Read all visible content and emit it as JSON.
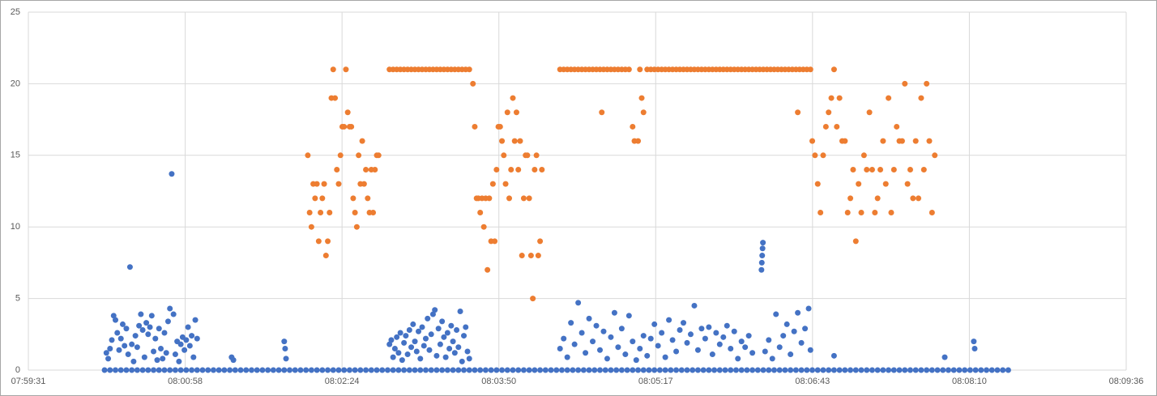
{
  "chart_data": {
    "type": "scatter",
    "xlim": [
      28771,
      29376
    ],
    "xticks": [
      {
        "value": 28771,
        "label": "07:59:31"
      },
      {
        "value": 28857.43,
        "label": "08:00:58"
      },
      {
        "value": 28943.86,
        "label": "08:02:24"
      },
      {
        "value": 29030.29,
        "label": "08:03:50"
      },
      {
        "value": 29116.71,
        "label": "08:05:17"
      },
      {
        "value": 29203.14,
        "label": "08:06:43"
      },
      {
        "value": 29289.57,
        "label": "08:08:10"
      },
      {
        "value": 29376,
        "label": "08:09:36"
      }
    ],
    "ylim": [
      0,
      25
    ],
    "yticks": [
      0,
      5,
      10,
      15,
      20,
      25
    ],
    "grid": true,
    "series": [
      {
        "color": "#4472c4",
        "x": [
          28813,
          28816,
          28819,
          28822,
          28825,
          28828,
          28831,
          28834,
          28837,
          28840,
          28843,
          28846,
          28849,
          28852,
          28855,
          28858,
          28861,
          28864,
          28867,
          28870,
          28873,
          28876,
          28879,
          28882,
          28885,
          28888,
          28891,
          28894,
          28897,
          28900,
          28903,
          28906,
          28909,
          28912,
          28915,
          28918,
          28921,
          28924,
          28927,
          28930,
          28933,
          28936,
          28939,
          28942,
          28945,
          28948,
          28951,
          28954,
          28957,
          28960,
          28963,
          28966,
          28969,
          28972,
          28975,
          28978,
          28981,
          28984,
          28987,
          28990,
          28993,
          28996,
          28999,
          29002,
          29005,
          29008,
          29011,
          29014,
          29017,
          29020,
          29023,
          29026,
          29029,
          29032,
          29035,
          29038,
          29041,
          29044,
          29047,
          29050,
          29053,
          29056,
          29059,
          29062,
          29065,
          29068,
          29071,
          29074,
          29077,
          29080,
          29083,
          29086,
          29089,
          29092,
          29095,
          29098,
          29101,
          29104,
          29107,
          29110,
          29113,
          29116,
          29119,
          29122,
          29125,
          29128,
          29131,
          29134,
          29137,
          29140,
          29143,
          29146,
          29149,
          29152,
          29155,
          29158,
          29161,
          29164,
          29167,
          29170,
          29173,
          29176,
          29179,
          29182,
          29185,
          29188,
          29191,
          29194,
          29197,
          29200,
          29203,
          29206,
          29209,
          29212,
          29215,
          29218,
          29221,
          29224,
          29227,
          29230,
          29233,
          29236,
          29239,
          29242,
          29245,
          29248,
          29251,
          29254,
          29257,
          29260,
          29263,
          29266,
          29269,
          29272,
          29275,
          29278,
          29281,
          29284,
          29287,
          29290,
          29293,
          29296,
          29299,
          29302,
          29305,
          29308,
          29311,
          28814,
          28815,
          28816,
          28817,
          28818,
          28819,
          28820,
          28821,
          28822,
          28823,
          28824,
          28825,
          28826,
          28827,
          28828,
          28829,
          28830,
          28831,
          28832,
          28833,
          28834,
          28835,
          28836,
          28837,
          28838,
          28839,
          28840,
          28841,
          28842,
          28843,
          28844,
          28845,
          28846,
          28847,
          28848,
          28849,
          28850,
          28851,
          28852,
          28853,
          28854,
          28855,
          28856,
          28857,
          28858,
          28859,
          28860,
          28861,
          28862,
          28863,
          28864,
          28883,
          28884,
          28912,
          28912.5,
          28913,
          28970,
          28971,
          28972,
          28973,
          28974,
          28975,
          28976,
          28977,
          28978,
          28979,
          28980,
          28981,
          28982,
          28983,
          28984,
          28985,
          28986,
          28987,
          28988,
          28989,
          28990,
          28991,
          28992,
          28993,
          28994,
          28995,
          28996,
          28997,
          28998,
          28999,
          29000,
          29001,
          29002,
          29003,
          29004,
          29005,
          29006,
          29007,
          29008,
          29009,
          29010,
          29011,
          29012,
          29013,
          29014,
          29064,
          29066,
          29068,
          29070,
          29072,
          29074,
          29076,
          29078,
          29080,
          29082,
          29084,
          29086,
          29088,
          29090,
          29092,
          29094,
          29096,
          29098,
          29100,
          29102,
          29104,
          29106,
          29108,
          29110,
          29112,
          29114,
          29116,
          29118,
          29120,
          29122,
          29124,
          29126,
          29128,
          29130,
          29132,
          29134,
          29136,
          29138,
          29140,
          29142,
          29144,
          29146,
          29148,
          29150,
          29152,
          29154,
          29156,
          29158,
          29160,
          29162,
          29164,
          29166,
          29168,
          29170,
          29175,
          29175.2,
          29175.4,
          29175.6,
          29175.8,
          29177,
          29179,
          29181,
          29183,
          29185,
          29187,
          29189,
          29191,
          29193,
          29195,
          29197,
          29199,
          29201,
          29202,
          29215,
          29276,
          29292,
          29292.5
        ],
        "values": [
          0,
          0,
          0,
          0,
          0,
          0,
          0,
          0,
          0,
          0,
          0,
          0,
          0,
          0,
          0,
          0,
          0,
          0,
          0,
          0,
          0,
          0,
          0,
          0,
          0,
          0,
          0,
          0,
          0,
          0,
          0,
          0,
          0,
          0,
          0,
          0,
          0,
          0,
          0,
          0,
          0,
          0,
          0,
          0,
          0,
          0,
          0,
          0,
          0,
          0,
          0,
          0,
          0,
          0,
          0,
          0,
          0,
          0,
          0,
          0,
          0,
          0,
          0,
          0,
          0,
          0,
          0,
          0,
          0,
          0,
          0,
          0,
          0,
          0,
          0,
          0,
          0,
          0,
          0,
          0,
          0,
          0,
          0,
          0,
          0,
          0,
          0,
          0,
          0,
          0,
          0,
          0,
          0,
          0,
          0,
          0,
          0,
          0,
          0,
          0,
          0,
          0,
          0,
          0,
          0,
          0,
          0,
          0,
          0,
          0,
          0,
          0,
          0,
          0,
          0,
          0,
          0,
          0,
          0,
          0,
          0,
          0,
          0,
          0,
          0,
          0,
          0,
          0,
          0,
          0,
          0,
          0,
          0,
          0,
          0,
          0,
          0,
          0,
          0,
          0,
          0,
          0,
          0,
          0,
          0,
          0,
          0,
          0,
          0,
          0,
          0,
          0,
          0,
          0,
          0,
          0,
          0,
          0,
          0,
          0,
          0,
          0,
          0,
          0,
          0,
          0,
          0,
          1.2,
          0.8,
          1.5,
          2.1,
          3.8,
          3.5,
          2.6,
          1.4,
          2.2,
          3.2,
          1.7,
          2.9,
          1.1,
          7.2,
          1.8,
          0.6,
          2.4,
          1.6,
          3.1,
          3.9,
          2.8,
          0.9,
          3.3,
          2.5,
          3.0,
          3.8,
          1.3,
          2.2,
          0.7,
          2.9,
          1.5,
          0.8,
          2.6,
          1.2,
          3.4,
          4.3,
          13.7,
          3.9,
          1.1,
          2.0,
          0.6,
          1.8,
          2.3,
          1.4,
          2.1,
          3.0,
          1.7,
          2.4,
          0.9,
          3.5,
          2.2,
          0.9,
          0.7,
          2.0,
          1.5,
          0.8,
          1.8,
          2.1,
          0.9,
          1.5,
          2.3,
          1.2,
          2.6,
          0.7,
          1.9,
          2.4,
          1.1,
          2.8,
          1.6,
          3.2,
          2.0,
          1.3,
          2.7,
          0.8,
          3.0,
          1.7,
          2.2,
          3.6,
          1.4,
          2.5,
          3.9,
          4.2,
          1.0,
          2.9,
          1.8,
          3.4,
          2.3,
          0.9,
          2.6,
          1.5,
          3.1,
          2.0,
          1.2,
          2.8,
          1.6,
          4.1,
          0.6,
          2.4,
          3.0,
          1.3,
          0.8,
          1.5,
          2.2,
          0.9,
          3.3,
          1.8,
          4.7,
          2.6,
          1.2,
          3.6,
          2.0,
          3.1,
          1.4,
          2.7,
          0.8,
          2.3,
          4.0,
          1.6,
          2.9,
          1.1,
          3.8,
          2.0,
          0.7,
          1.5,
          2.4,
          1.0,
          2.2,
          3.2,
          1.7,
          2.6,
          0.9,
          3.5,
          2.1,
          1.3,
          2.8,
          3.3,
          1.9,
          2.5,
          4.5,
          1.4,
          2.9,
          2.2,
          3.0,
          1.1,
          2.6,
          1.8,
          2.3,
          3.1,
          1.5,
          2.7,
          0.8,
          2.0,
          1.6,
          2.4,
          1.2,
          7.0,
          7.5,
          8.0,
          8.5,
          8.9,
          1.3,
          2.1,
          0.8,
          3.9,
          1.6,
          2.4,
          3.2,
          1.1,
          2.7,
          4.0,
          1.9,
          2.9,
          4.3,
          1.4,
          1.0,
          0.9,
          2.0,
          1.5
        ]
      },
      {
        "color": "#ed7d31",
        "x": [
          28925,
          28926,
          28927,
          28928,
          28929,
          28930,
          28931,
          28932,
          28933,
          28934,
          28935,
          28936,
          28937,
          28938,
          28939,
          28940,
          28941,
          28942,
          28943,
          28944,
          28945,
          28946,
          28947,
          28948,
          28949,
          28950,
          28951,
          28952,
          28953,
          28954,
          28955,
          28956,
          28957,
          28958,
          28959,
          28960,
          28961,
          28962,
          28963,
          28964,
          28970,
          28972,
          28974,
          28976,
          28978,
          28980,
          28982,
          28984,
          28986,
          28988,
          28990,
          28992,
          28994,
          28996,
          28998,
          29000,
          29002,
          29004,
          29006,
          29008,
          29010,
          29012,
          29014,
          29016,
          29017,
          29018,
          29019,
          29020,
          29021,
          29022,
          29023,
          29024,
          29025,
          29026,
          29027,
          29028,
          29029,
          29030,
          29031,
          29032,
          29033,
          29034,
          29035,
          29036,
          29037,
          29038,
          29039,
          29040,
          29041,
          29042,
          29043,
          29044,
          29045,
          29046,
          29047,
          29048,
          29049,
          29050,
          29051,
          29052,
          29053,
          29054,
          29064,
          29066,
          29068,
          29070,
          29072,
          29074,
          29076,
          29078,
          29080,
          29082,
          29084,
          29086,
          29088,
          29090,
          29092,
          29094,
          29096,
          29098,
          29100,
          29102,
          29087,
          29104,
          29105,
          29107,
          29108,
          29109,
          29110,
          29112,
          29114,
          29116,
          29118,
          29120,
          29122,
          29124,
          29126,
          29128,
          29130,
          29132,
          29134,
          29136,
          29138,
          29140,
          29142,
          29144,
          29146,
          29148,
          29150,
          29152,
          29154,
          29156,
          29158,
          29160,
          29162,
          29164,
          29166,
          29168,
          29170,
          29172,
          29174,
          29176,
          29178,
          29180,
          29182,
          29184,
          29186,
          29188,
          29190,
          29192,
          29194,
          29196,
          29198,
          29200,
          29202,
          29195,
          29203,
          29204.5,
          29206,
          29207.5,
          29209,
          29210.5,
          29212,
          29213.5,
          29215,
          29216.5,
          29218,
          29219.5,
          29221,
          29222.5,
          29224,
          29225.5,
          29227,
          29228.5,
          29230,
          29231.5,
          29233,
          29234.5,
          29236,
          29237.5,
          29239,
          29240.5,
          29242,
          29243.5,
          29245,
          29246.5,
          29248,
          29249.5,
          29251,
          29252.5,
          29254,
          29255.5,
          29257,
          29258.5,
          29260,
          29261.5,
          29263,
          29264.5,
          29266,
          29267.5,
          29269,
          29270.5
        ],
        "values": [
          15,
          11,
          10,
          13,
          12,
          13,
          9,
          11,
          12,
          13,
          8,
          9,
          11,
          19,
          21,
          19,
          14,
          13,
          15,
          17,
          17,
          21,
          18,
          17,
          17,
          12,
          11,
          10,
          15,
          13,
          16,
          13,
          14,
          12,
          11,
          14,
          11,
          14,
          15,
          15,
          21,
          21,
          21,
          21,
          21,
          21,
          21,
          21,
          21,
          21,
          21,
          21,
          21,
          21,
          21,
          21,
          21,
          21,
          21,
          21,
          21,
          21,
          21,
          20,
          17,
          12,
          12,
          11,
          12,
          10,
          12,
          7,
          12,
          9,
          13,
          9,
          14,
          17,
          17,
          16,
          15,
          13,
          18,
          12,
          14,
          19,
          16,
          18,
          14,
          16,
          8,
          12,
          15,
          15,
          12,
          8,
          5,
          14,
          15,
          8,
          9,
          14,
          21,
          21,
          21,
          21,
          21,
          21,
          21,
          21,
          21,
          21,
          21,
          21,
          21,
          21,
          21,
          21,
          21,
          21,
          21,
          21,
          18,
          17,
          16,
          16,
          21,
          19,
          18,
          21,
          21,
          21,
          21,
          21,
          21,
          21,
          21,
          21,
          21,
          21,
          21,
          21,
          21,
          21,
          21,
          21,
          21,
          21,
          21,
          21,
          21,
          21,
          21,
          21,
          21,
          21,
          21,
          21,
          21,
          21,
          21,
          21,
          21,
          21,
          21,
          21,
          21,
          21,
          21,
          21,
          21,
          21,
          21,
          21,
          21,
          18,
          16,
          15,
          13,
          11,
          15,
          17,
          18,
          19,
          21,
          17,
          19,
          16,
          16,
          11,
          12,
          14,
          9,
          13,
          11,
          15,
          14,
          18,
          14,
          11,
          12,
          14,
          16,
          13,
          19,
          11,
          14,
          17,
          16,
          16,
          20,
          13,
          14,
          12,
          16,
          12,
          19,
          14,
          20,
          16,
          11,
          15
        ]
      }
    ]
  }
}
